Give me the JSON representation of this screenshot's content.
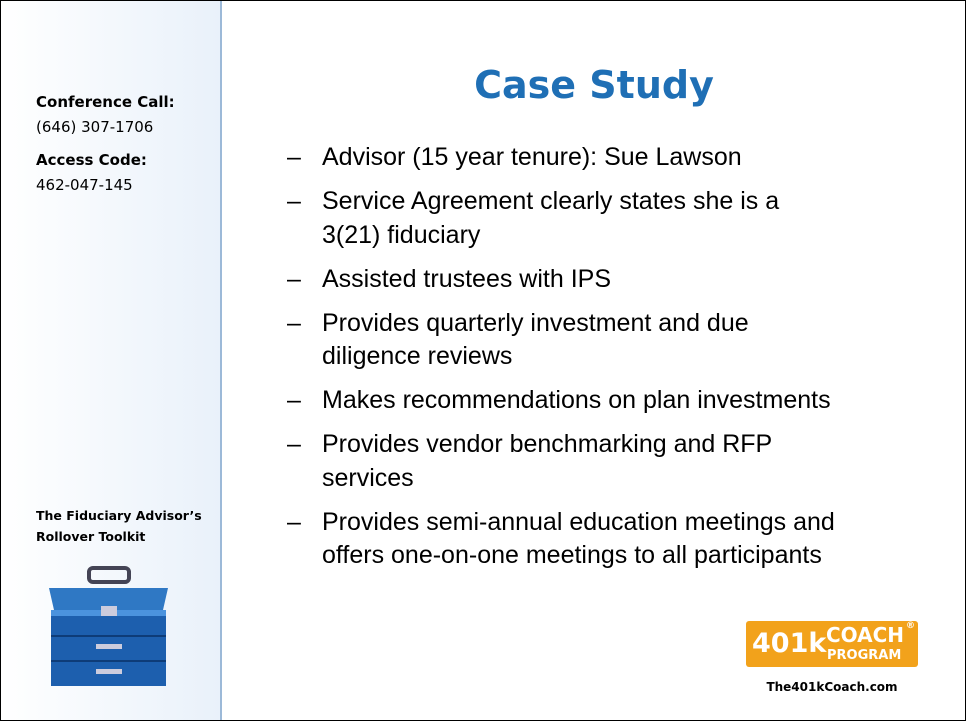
{
  "sidebar": {
    "conference_label": "Conference Call:",
    "conference_number": "(646) 307-1706",
    "access_label": "Access Code:",
    "access_code": "462-047-145",
    "toolkit_lines": [
      "The Fiduciary Advisor’s",
      "Rollover Toolkit"
    ]
  },
  "slide": {
    "title": "Case Study",
    "bullet_marker": "–",
    "bullets": [
      [
        "Advisor (15 year tenure): Sue Lawson"
      ],
      [
        "Service Agreement clearly states she is a",
        "3(21) fiduciary"
      ],
      [
        "Assisted trustees with IPS"
      ],
      [
        "Provides quarterly investment and due",
        "diligence reviews"
      ],
      [
        "Makes recommendations on plan investments"
      ],
      [
        "Provides vendor benchmarking and RFP",
        "services"
      ],
      [
        "Provides semi-annual education meetings and",
        "offers one-on-one meetings to all participants"
      ]
    ]
  },
  "logo": {
    "mark": "401k",
    "word1": "COACH",
    "registered": "®",
    "word2": "PROGRAM",
    "url": "The401kCoach.com"
  }
}
